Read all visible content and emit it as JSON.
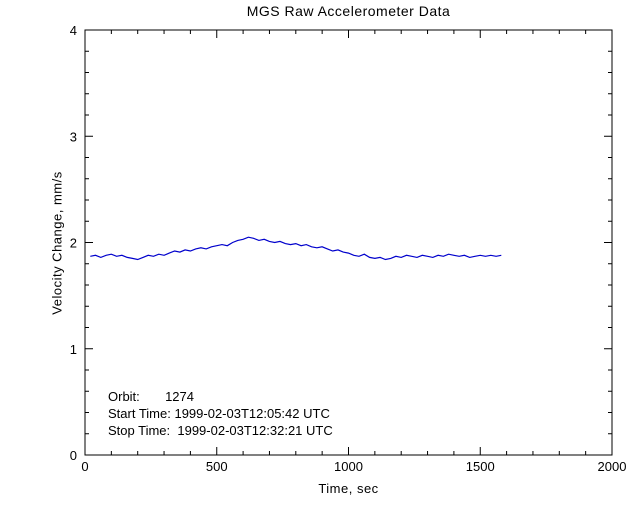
{
  "title": "MGS Raw Accelerometer Data",
  "chart_data": {
    "type": "line",
    "title": "MGS Raw Accelerometer Data",
    "xlabel": "Time, sec",
    "ylabel": "Velocity Change, mm/s",
    "xlim": [
      0,
      2000
    ],
    "ylim": [
      0,
      4
    ],
    "x_ticks": [
      0,
      500,
      1000,
      1500,
      2000
    ],
    "y_ticks": [
      0,
      1,
      2,
      3,
      4
    ],
    "x_minor_step": 100,
    "y_minor_step": 0.2,
    "grid": false,
    "legend": "none",
    "line_color": "#0000cc",
    "axis_color": "#000000",
    "background_color": "#ffffff",
    "orbit": 1274,
    "start_time": "1999-02-03T12:05:42 UTC",
    "stop_time": "1999-02-03T12:32:21 UTC",
    "annotations": [
      "Orbit:       1274",
      "Start Time: 1999-02-03T12:05:42 UTC",
      "Stop Time:  1999-02-03T12:32:21 UTC"
    ],
    "series": [
      {
        "name": "velocity_change",
        "x": [
          20,
          40,
          60,
          80,
          100,
          120,
          140,
          160,
          180,
          200,
          220,
          240,
          260,
          280,
          300,
          320,
          340,
          360,
          380,
          400,
          420,
          440,
          460,
          480,
          500,
          520,
          540,
          560,
          580,
          600,
          620,
          640,
          660,
          680,
          700,
          720,
          740,
          760,
          780,
          800,
          820,
          840,
          860,
          880,
          900,
          920,
          940,
          960,
          980,
          1000,
          1020,
          1040,
          1060,
          1080,
          1100,
          1120,
          1140,
          1160,
          1180,
          1200,
          1220,
          1240,
          1260,
          1280,
          1300,
          1320,
          1340,
          1360,
          1380,
          1400,
          1420,
          1440,
          1460,
          1480,
          1500,
          1520,
          1540,
          1560,
          1580
        ],
        "y": [
          1.87,
          1.88,
          1.86,
          1.88,
          1.89,
          1.87,
          1.88,
          1.86,
          1.85,
          1.84,
          1.86,
          1.88,
          1.87,
          1.89,
          1.88,
          1.9,
          1.92,
          1.91,
          1.93,
          1.92,
          1.94,
          1.95,
          1.94,
          1.96,
          1.97,
          1.98,
          1.97,
          2.0,
          2.02,
          2.03,
          2.05,
          2.04,
          2.02,
          2.03,
          2.01,
          2.0,
          2.01,
          1.99,
          1.98,
          1.99,
          1.97,
          1.98,
          1.96,
          1.95,
          1.96,
          1.94,
          1.92,
          1.93,
          1.91,
          1.9,
          1.88,
          1.87,
          1.89,
          1.86,
          1.85,
          1.86,
          1.84,
          1.85,
          1.87,
          1.86,
          1.88,
          1.87,
          1.86,
          1.88,
          1.87,
          1.86,
          1.88,
          1.87,
          1.89,
          1.88,
          1.87,
          1.88,
          1.86,
          1.87,
          1.88,
          1.87,
          1.88,
          1.87,
          1.88
        ]
      }
    ]
  }
}
